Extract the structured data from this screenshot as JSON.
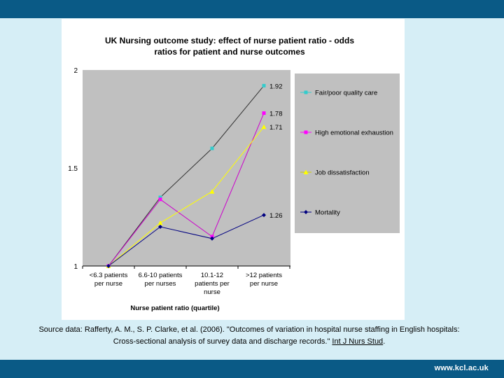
{
  "slide": {
    "source_prefix": "Source data: Rafferty, A. M., S. P. Clarke, et al. (2006). \"Outcomes of variation in hospital nurse staffing in English hospitals: Cross-sectional analysis of survey data and discharge records.\"",
    "source_journal": "Int J Nurs Stud",
    "source_suffix": ".",
    "footer_url": "www.kcl.ac.uk",
    "colors": {
      "bar": "#0a5a86",
      "background": "#d6eef6",
      "plot_bg": "#c0c0c0"
    }
  },
  "chart_data": {
    "type": "line",
    "title_lines": [
      "UK Nursing outcome study: effect of nurse patient ratio - odds",
      "ratios for patient and nurse outcomes"
    ],
    "xlabel": "Nurse patient ratio (quartile)",
    "ylabel": "",
    "categories": [
      [
        "<6.3 patients",
        "per nurse"
      ],
      [
        "6.6-10 patients",
        "per nurses"
      ],
      [
        "10.1-12",
        "patients per",
        "nurse"
      ],
      [
        ">12 patients",
        "per nurse"
      ]
    ],
    "ylim": [
      1,
      2
    ],
    "yticks": [
      "1",
      "1.5",
      "2"
    ],
    "grid": false,
    "legend_position": "right",
    "series": [
      {
        "name": "Fair/poor quality care",
        "values": [
          1.0,
          1.35,
          1.6,
          1.92
        ],
        "color": "#33cccc",
        "marker": "square",
        "label": "1.92"
      },
      {
        "name": "High emotional exhaustion",
        "values": [
          1.0,
          1.34,
          1.15,
          1.78
        ],
        "color": "#ff00ff",
        "marker": "square",
        "label": "1.78"
      },
      {
        "name": "Job dissatisfaction",
        "values": [
          1.0,
          1.22,
          1.38,
          1.71
        ],
        "color": "#ffff00",
        "marker": "triangle",
        "label": "1.71"
      },
      {
        "name": "Mortality",
        "values": [
          1.0,
          1.2,
          1.14,
          1.26
        ],
        "color": "#000080",
        "marker": "diamond",
        "label": "1.26"
      }
    ]
  }
}
